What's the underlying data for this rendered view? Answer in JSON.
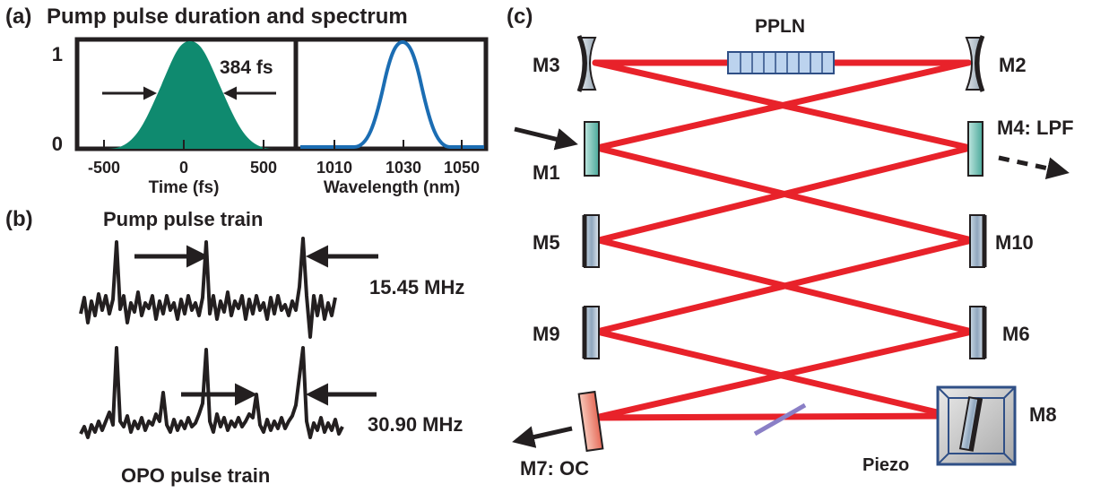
{
  "panel_a": {
    "tag": "(a)",
    "title": "Pump pulse duration and spectrum",
    "y_tick_top": "1",
    "y_tick_bottom": "0",
    "duration_label": "384 fs",
    "time_ticks": [
      "-500",
      "0",
      "500"
    ],
    "time_xlabel": "Time (fs)",
    "wl_ticks": [
      "1010",
      "1030",
      "1050"
    ],
    "wl_xlabel": "Wavelength (nm)",
    "pulse_fill_color": "#0f8a6f",
    "spectrum_color": "#1b6db3"
  },
  "panel_b": {
    "tag": "(b)",
    "pump_title": "Pump pulse train",
    "pump_rate": "15.45 MHz",
    "opo_rate": "30.90 MHz",
    "opo_title": "OPO pulse train"
  },
  "panel_c": {
    "tag": "(c)",
    "crystal_label": "PPLN",
    "mirrors": {
      "m1": "M1",
      "m2": "M2",
      "m3": "M3",
      "m4": "M4: LPF",
      "m5": "M5",
      "m6": "M6",
      "m7": "M7: OC",
      "m8": "M8",
      "m9": "M9",
      "m10": "M10"
    },
    "piezo_label": "Piezo",
    "beam_color": "#e8222a"
  }
}
